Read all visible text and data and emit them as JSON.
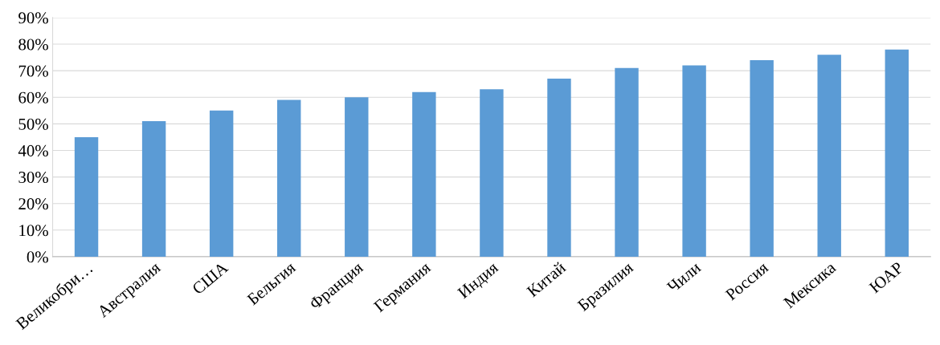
{
  "chart_data": {
    "type": "bar",
    "categories": [
      "Великобри…",
      "Австралия",
      "США",
      "Бельгия",
      "Франция",
      "Германия",
      "Индия",
      "Китай",
      "Бразилия",
      "Чили",
      "Россия",
      "Мексика",
      "ЮАР"
    ],
    "values": [
      45,
      51,
      55,
      59,
      60,
      62,
      63,
      67,
      71,
      72,
      74,
      76,
      78
    ],
    "color": "#5b9bd5",
    "ylim": [
      0,
      90
    ],
    "yticks": [
      {
        "value": 0,
        "label": "0%"
      },
      {
        "value": 10,
        "label": "10%"
      },
      {
        "value": 20,
        "label": "20%"
      },
      {
        "value": 30,
        "label": "30%"
      },
      {
        "value": 40,
        "label": "40%"
      },
      {
        "value": 50,
        "label": "50%"
      },
      {
        "value": 60,
        "label": "60%"
      },
      {
        "value": 70,
        "label": "70%"
      },
      {
        "value": 80,
        "label": "80%"
      },
      {
        "value": 90,
        "label": "90%"
      }
    ],
    "grid": "y",
    "legend": false
  }
}
